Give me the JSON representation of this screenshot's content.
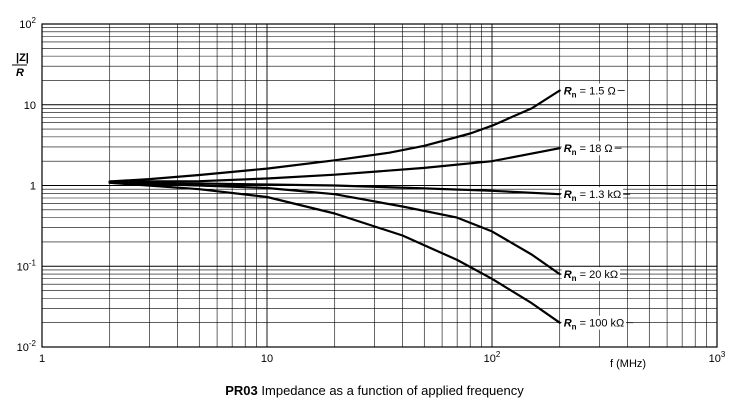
{
  "chart_data": {
    "type": "line",
    "xscale": "log",
    "yscale": "log",
    "xlim": [
      1,
      1000
    ],
    "ylim": [
      0.01,
      100
    ],
    "grid": true,
    "x_ticks": [
      {
        "value": 1,
        "mantissa": "1",
        "exponent": ""
      },
      {
        "value": 10,
        "mantissa": "10",
        "exponent": ""
      },
      {
        "value": 100,
        "mantissa": "10",
        "exponent": "2"
      },
      {
        "value": 1000,
        "mantissa": "10",
        "exponent": "3"
      }
    ],
    "y_ticks": [
      {
        "value": 0.01,
        "mantissa": "10",
        "exponent": "-2"
      },
      {
        "value": 0.1,
        "mantissa": "10",
        "exponent": "-1"
      },
      {
        "value": 1,
        "mantissa": "1",
        "exponent": ""
      },
      {
        "value": 10,
        "mantissa": "10",
        "exponent": ""
      },
      {
        "value": 100,
        "mantissa": "10",
        "exponent": "2"
      }
    ],
    "ylabel_numerator": "|Z|",
    "ylabel_denominator": "R",
    "xlabel": "f (MHz)",
    "series": [
      {
        "name": "Rn = 1.5 Ω",
        "label_symbol": "R",
        "label_subscript": "n",
        "label_value": " = 1.5 Ω",
        "x": [
          2,
          3,
          5,
          10,
          20,
          35,
          50,
          80,
          100,
          150,
          200
        ],
        "y": [
          1.12,
          1.2,
          1.35,
          1.62,
          2.05,
          2.55,
          3.1,
          4.4,
          5.5,
          9.0,
          15.0
        ]
      },
      {
        "name": "Rn = 18 Ω",
        "label_symbol": "R",
        "label_subscript": "n",
        "label_value": " = 18 Ω",
        "x": [
          2,
          5,
          10,
          20,
          50,
          100,
          200
        ],
        "y": [
          1.12,
          1.13,
          1.22,
          1.36,
          1.65,
          2.0,
          2.9
        ]
      },
      {
        "name": "Rn = 1.3 kΩ",
        "label_symbol": "R",
        "label_subscript": "n",
        "label_value": " = 1.3 kΩ",
        "x": [
          2,
          5,
          10,
          20,
          50,
          100,
          200
        ],
        "y": [
          1.1,
          1.06,
          1.03,
          1.0,
          0.92,
          0.86,
          0.78
        ]
      },
      {
        "name": "Rn = 20 kΩ",
        "label_symbol": "R",
        "label_subscript": "n",
        "label_value": " = 20 kΩ",
        "x": [
          2,
          5,
          10,
          20,
          40,
          70,
          100,
          150,
          200
        ],
        "y": [
          1.08,
          1.0,
          0.93,
          0.78,
          0.55,
          0.4,
          0.27,
          0.14,
          0.08
        ]
      },
      {
        "name": "Rn = 100 kΩ",
        "label_symbol": "R",
        "label_subscript": "n",
        "label_value": " = 100 kΩ",
        "x": [
          2,
          5,
          10,
          20,
          40,
          70,
          100,
          150,
          200
        ],
        "y": [
          1.08,
          0.9,
          0.72,
          0.45,
          0.24,
          0.12,
          0.07,
          0.035,
          0.02
        ]
      }
    ],
    "caption_code": "PR03",
    "caption_text": " Impedance as a function of applied frequency"
  }
}
